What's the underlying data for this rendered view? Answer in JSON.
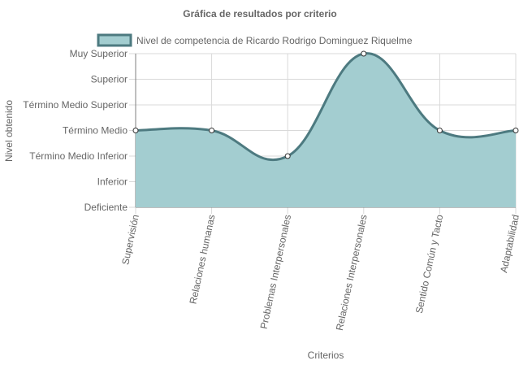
{
  "chart_data": {
    "type": "area",
    "title": "Gráfica de resultados por criterio",
    "xlabel": "Criterios",
    "ylabel": "Nivel obtenido",
    "categories": [
      "Supervisión",
      "Relaciones humanas",
      "Problemas Interpersonales",
      "Relaciones Interpersonales",
      "Sentido Común y Tacto",
      "Adaptabilidad"
    ],
    "y_levels": [
      "Deficiente",
      "Inferior",
      "Término Medio Inferior",
      "Término Medio",
      "Término Medio Superior",
      "Superior",
      "Muy Superior"
    ],
    "ylim": [
      0,
      6
    ],
    "series": [
      {
        "name": "Nivel de competencia de Ricardo Rodrigo Dominguez Riquelme",
        "values": [
          3,
          3,
          2,
          6,
          3,
          3
        ]
      }
    ],
    "legend_position": "top",
    "grid": true,
    "colors": {
      "fill": "#a3cdd0",
      "stroke": "#4d7a80",
      "grid": "#d9d9d9",
      "axis": "#7f7f7f"
    }
  }
}
